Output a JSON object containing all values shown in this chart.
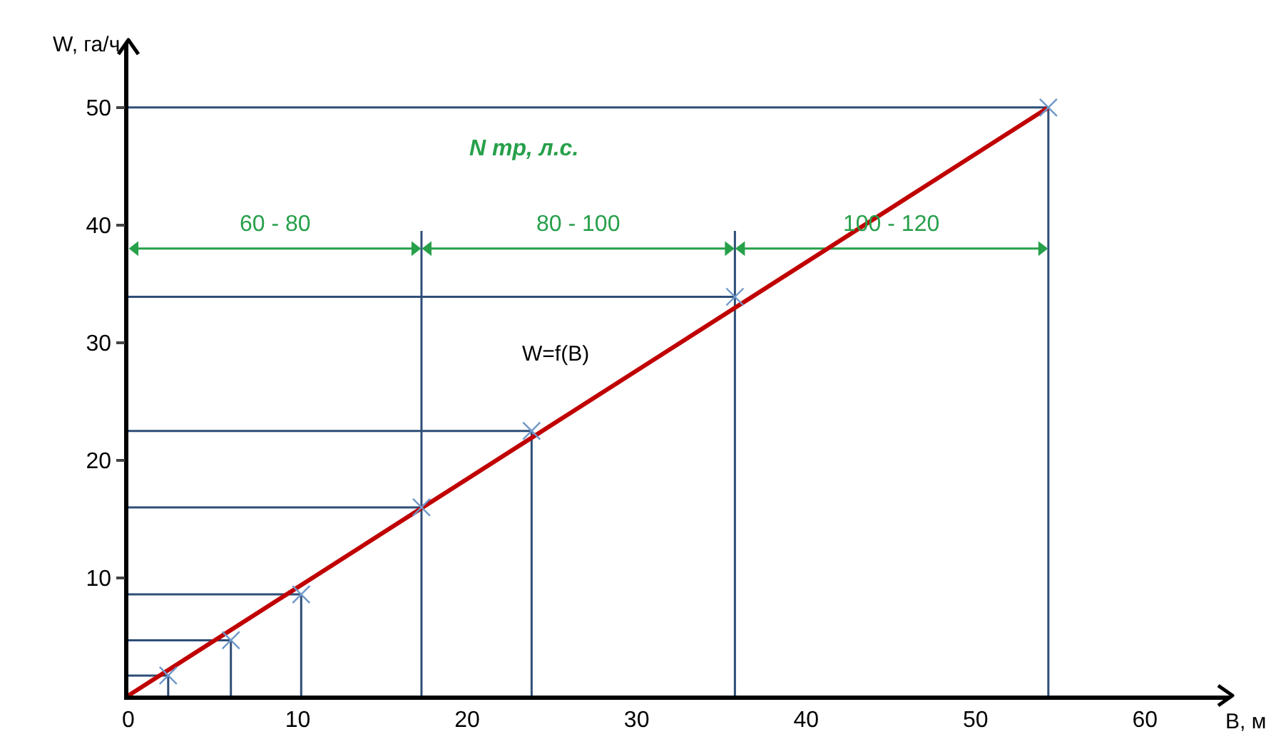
{
  "chart_data": {
    "type": "line",
    "annotations": [
      "N тр, л.с.",
      {
        "text": "60 - 80",
        "x": 8.65,
        "y": 38
      },
      {
        "text": "80 - 100",
        "x": 26.55,
        "y": 38
      },
      {
        "text": "100 - 120",
        "x": 45.05,
        "y": 38
      }
    ],
    "xlabel": "B, м",
    "ylabel": "W, га/ч",
    "series": [
      {
        "color": "#2e4e78",
        "marker": "none",
        "x": [
          0,
          2.35,
          2.35
        ],
        "values": [
          1.7,
          1.7,
          0
        ]
      },
      {
        "color": "#2e4e78",
        "marker": "none",
        "x": [
          0,
          6.05,
          6.05
        ],
        "values": [
          4.7,
          4.7,
          0
        ]
      },
      {
        "color": "#2e4e78",
        "marker": "none",
        "x": [
          0,
          10.2,
          10.2
        ],
        "values": [
          8.6,
          8.6,
          0
        ]
      },
      {
        "color": "#2e4e78",
        "marker": "none",
        "x": [
          0,
          17.3,
          17.3,
          17.3
        ],
        "values": [
          16,
          16,
          39.5,
          0
        ]
      },
      {
        "color": "#2e4e78",
        "marker": "none",
        "x": [
          0,
          23.8,
          23.8
        ],
        "values": [
          22.5,
          22.5,
          0
        ]
      },
      {
        "color": "#2e4e78",
        "marker": "none",
        "x": [
          0,
          35.8,
          35.8,
          35.8
        ],
        "values": [
          33.9,
          33.9,
          39.5,
          0
        ]
      },
      {
        "color": "#2e4e78",
        "marker": "none",
        "x": [
          0,
          54.3,
          54.3
        ],
        "values": [
          50,
          50,
          0
        ]
      },
      {
        "color": "#27a04a",
        "marker": "triangle",
        "x": [
          0.4,
          16.9
        ],
        "values": [
          38,
          38
        ]
      },
      {
        "color": "#27a04a",
        "marker": "triangle",
        "x": [
          17.7,
          35.4
        ],
        "values": [
          38,
          38
        ]
      },
      {
        "color": "#27a04a",
        "marker": "triangle",
        "x": [
          36.2,
          53.9
        ],
        "values": [
          38,
          38
        ]
      },
      {
        "name": "W=f(B)",
        "color": "#c00000",
        "marker": "none",
        "x": [
          0,
          54.3
        ],
        "values": [
          0,
          50
        ]
      },
      {
        "type": "scatter",
        "color": "#6f97c8",
        "marker": "cross",
        "x": [
          2.35,
          6.05,
          10.2,
          17.3,
          23.8,
          35.8,
          54.3
        ],
        "values": [
          1.7,
          4.7,
          8.6,
          16,
          22.5,
          33.9,
          50
        ]
      }
    ],
    "xlim": [
      0,
      65
    ],
    "ylim": [
      0,
      55.5
    ],
    "xticks": [
      0,
      10,
      20,
      30,
      40,
      50,
      60
    ],
    "yticks": [
      10,
      20,
      30,
      40,
      50
    ],
    "grid": false,
    "legend": false
  }
}
